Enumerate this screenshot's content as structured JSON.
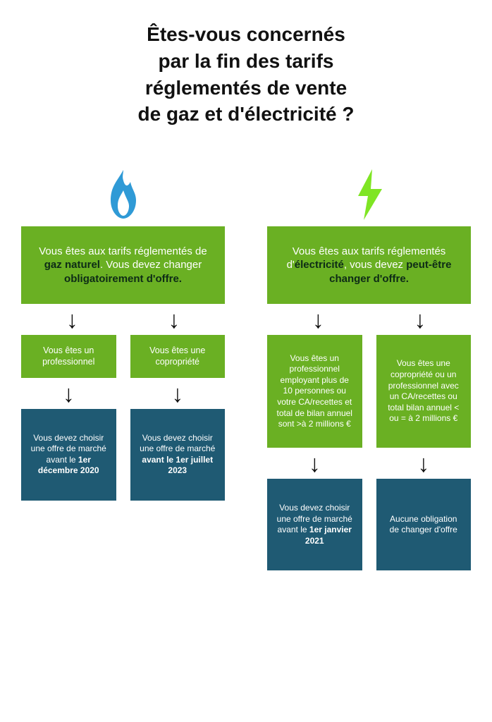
{
  "title": "Êtes-vous concernés\npar la fin des tarifs\nréglementés de vente\nde gaz et d'électricité ?",
  "colors": {
    "green": "#6ab023",
    "blue": "#1f5a73",
    "flame": "#2f9ad6",
    "bolt": "#7fe524",
    "text_dark": "#111111",
    "intro_bold": "#0d2b16"
  },
  "gas": {
    "icon": "flame",
    "intro_plain1": "Vous êtes aux tarifs réglementés de ",
    "intro_bold1": "gaz naturel",
    "intro_plain2": ". Vous devez changer ",
    "intro_bold2": "obligatoirement d'offre.",
    "left": {
      "mid": "Vous êtes un professionnel",
      "res_plain": "Vous devez choisir une offre de marché avant le ",
      "res_bold": "1er décembre 2020"
    },
    "right": {
      "mid": "Vous êtes une copropriété",
      "res_plain": "Vous devez choisir une offre de marché ",
      "res_bold": "avant le 1er juillet 2023"
    }
  },
  "elec": {
    "icon": "bolt",
    "intro_plain1": "Vous êtes aux tarifs réglementés d'",
    "intro_bold1": "électricité",
    "intro_plain2": ", vous devez ",
    "intro_bold2": "peut-être changer d'offre.",
    "left": {
      "mid": "Vous êtes un professionnel employant plus de 10 personnes ou votre CA/recettes et total de bilan annuel sont >à 2 millions €",
      "res_plain": "Vous devez choisir une offre de marché avant le ",
      "res_bold": "1er janvier 2021"
    },
    "right": {
      "mid": "Vous êtes une copropriété ou un professionnel avec un CA/recettes ou total bilan annuel < ou = à 2 millions €",
      "res_plain": "Aucune obligation de changer d'offre",
      "res_bold": ""
    }
  }
}
